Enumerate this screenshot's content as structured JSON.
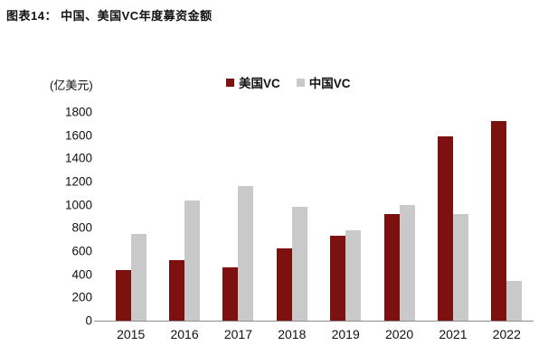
{
  "figure_label": "图表14：  中国、美国VC年度募资金额",
  "chart_data": {
    "type": "bar",
    "title": "图表14：中国、美国VC年度募资金额",
    "unit_label": "(亿美元)",
    "xlabel": "",
    "ylabel": "亿美元",
    "categories": [
      "2015",
      "2016",
      "2017",
      "2018",
      "2019",
      "2020",
      "2021",
      "2022"
    ],
    "series": [
      {
        "name": "美国VC",
        "color": "#7d1110",
        "values": [
          440,
          520,
          460,
          620,
          730,
          920,
          1590,
          1720
        ]
      },
      {
        "name": "中国VC",
        "color": "#c9c9c9",
        "values": [
          750,
          1040,
          1160,
          980,
          780,
          1000,
          920,
          340
        ]
      }
    ],
    "ylim": [
      0,
      1800
    ],
    "ytick_step": 200,
    "grid": false,
    "legend_position": "top-center",
    "axis_line_color": "#8c8c8c"
  }
}
